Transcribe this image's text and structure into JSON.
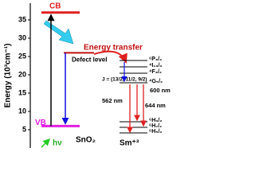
{
  "axis": {
    "label": "Energy (10³cm⁻¹)",
    "lim": [
      0,
      40
    ],
    "ticks": [
      5,
      10,
      15,
      20,
      25,
      30,
      35
    ]
  },
  "levels": {
    "cb": {
      "label": "CB",
      "value": 37
    },
    "vb": {
      "label": "VB",
      "value": 6
    },
    "defect": {
      "label": "Defect level",
      "value": 26
    }
  },
  "host": "SnO₂",
  "ion": "Sm⁺³",
  "excitation": "hν",
  "transfer": "Energy transfer",
  "sm_labels": [
    "⁶P₃/₂",
    "⁴I₁₃/₂",
    "⁴F₃/₂",
    "⁴G₅/₂",
    "⁶H₉/₂",
    "⁶H₇/₂",
    "⁶H₅/₂"
  ],
  "j_label": "J = (13/2, 11/2, 9/2)",
  "emissions": [
    "600 nm",
    "562 nm",
    "644 nm"
  ]
}
